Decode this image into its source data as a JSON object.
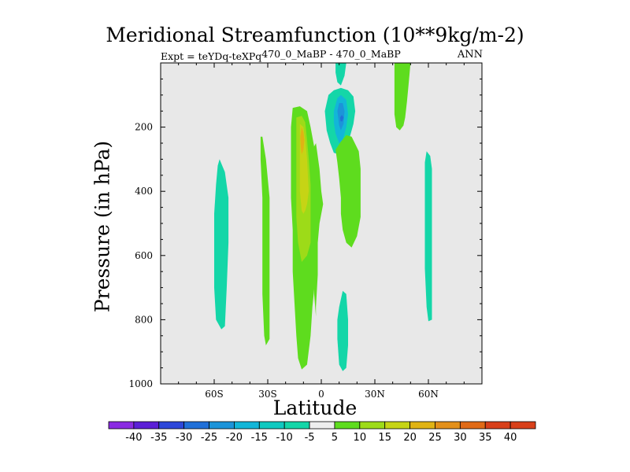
{
  "chart_data": {
    "type": "filled-contour",
    "title": "Meridional Streamfunction (10**9kg/m-2)",
    "subtitle_left_main": "Expt = teYDq-teXPq",
    "subtitle_left_super": "470_0_MaBP - 470_0_MaBP",
    "subtitle_right": "ANN",
    "xlabel": "Latitude",
    "ylabel": "Pressure (in hPa)",
    "xlim": [
      -90,
      90
    ],
    "ylim": [
      1000,
      0
    ],
    "x_ticks": [
      {
        "value": -60,
        "label": "60S"
      },
      {
        "value": -30,
        "label": "30S"
      },
      {
        "value": 0,
        "label": "0"
      },
      {
        "value": 30,
        "label": "30N"
      },
      {
        "value": 60,
        "label": "60N"
      }
    ],
    "y_ticks": [
      {
        "value": 200,
        "label": "200"
      },
      {
        "value": 400,
        "label": "400"
      },
      {
        "value": 600,
        "label": "600"
      },
      {
        "value": 800,
        "label": "800"
      },
      {
        "value": 1000,
        "label": "1000"
      }
    ],
    "colorbar": {
      "labels": [
        "-40",
        "-35",
        "-30",
        "-25",
        "-20",
        "-15",
        "-10",
        "-5",
        "5",
        "10",
        "15",
        "20",
        "25",
        "30",
        "35",
        "40"
      ],
      "colors": [
        "#8a2be2",
        "#5b1fd6",
        "#2d47d9",
        "#2070d8",
        "#1c94d9",
        "#12b6d8",
        "#10c9c0",
        "#14d6a8",
        "#eeeeee",
        "#5edc1e",
        "#9ddb18",
        "#c6d415",
        "#e0b314",
        "#e3901a",
        "#e06a16",
        "#d8401a"
      ]
    },
    "background_color": "#e8e8e8",
    "regions": [
      {
        "color": "#14d6a8",
        "points": [
          [
            -57,
            300
          ],
          [
            -54,
            340
          ],
          [
            -52,
            420
          ],
          [
            -52,
            560
          ],
          [
            -53,
            700
          ],
          [
            -54,
            820
          ],
          [
            -56,
            830
          ],
          [
            -59,
            800
          ],
          [
            -60,
            700
          ],
          [
            -60,
            580
          ],
          [
            -60,
            470
          ],
          [
            -59,
            380
          ],
          [
            -58,
            320
          ]
        ]
      },
      {
        "color": "#5edc1e",
        "points": [
          [
            -33,
            230
          ],
          [
            -31,
            300
          ],
          [
            -29,
            420
          ],
          [
            -29,
            580
          ],
          [
            -29,
            720
          ],
          [
            -29,
            860
          ],
          [
            -31,
            880
          ],
          [
            -32,
            850
          ],
          [
            -33,
            720
          ],
          [
            -33,
            560
          ],
          [
            -33,
            420
          ],
          [
            -34,
            300
          ],
          [
            -34,
            230
          ]
        ]
      },
      {
        "color": "#5edc1e",
        "points": [
          [
            -16,
            140
          ],
          [
            -12,
            135
          ],
          [
            -8,
            150
          ],
          [
            -6,
            200
          ],
          [
            -4,
            260
          ],
          [
            -3,
            350
          ],
          [
            -3,
            420
          ],
          [
            -3,
            540
          ],
          [
            -3,
            650
          ],
          [
            -5,
            760
          ],
          [
            -6,
            850
          ],
          [
            -8,
            940
          ],
          [
            -11,
            955
          ],
          [
            -13,
            920
          ],
          [
            -14,
            850
          ],
          [
            -15,
            750
          ],
          [
            -16,
            650
          ],
          [
            -16,
            520
          ],
          [
            -17,
            420
          ],
          [
            -17,
            300
          ],
          [
            -17,
            200
          ]
        ]
      },
      {
        "color": "#9ddb18",
        "points": [
          [
            -14,
            170
          ],
          [
            -11,
            165
          ],
          [
            -9,
            185
          ],
          [
            -8,
            240
          ],
          [
            -7,
            300
          ],
          [
            -6,
            380
          ],
          [
            -6,
            480
          ],
          [
            -6,
            560
          ],
          [
            -8,
            600
          ],
          [
            -11,
            620
          ],
          [
            -13,
            560
          ],
          [
            -14,
            480
          ],
          [
            -14,
            380
          ],
          [
            -14,
            290
          ],
          [
            -14,
            210
          ]
        ]
      },
      {
        "color": "#c6d415",
        "points": [
          [
            -12,
            190
          ],
          [
            -10,
            200
          ],
          [
            -9,
            240
          ],
          [
            -8,
            300
          ],
          [
            -7,
            400
          ],
          [
            -8,
            440
          ],
          [
            -9,
            460
          ],
          [
            -10,
            470
          ],
          [
            -11,
            460
          ],
          [
            -12,
            400
          ],
          [
            -12,
            300
          ],
          [
            -12,
            240
          ]
        ]
      },
      {
        "color": "#e0b314",
        "points": [
          [
            -11,
            200
          ],
          [
            -10,
            215
          ],
          [
            -9.5,
            240
          ],
          [
            -10,
            270
          ],
          [
            -11,
            285
          ],
          [
            -11.5,
            260
          ],
          [
            -11.8,
            230
          ]
        ]
      },
      {
        "color": "#5edc1e",
        "points": [
          [
            -3,
            250
          ],
          [
            -1,
            330
          ],
          [
            0,
            400
          ],
          [
            1,
            440
          ],
          [
            0,
            470
          ],
          [
            -1,
            500
          ],
          [
            -2,
            560
          ],
          [
            -2,
            660
          ],
          [
            -3,
            760
          ],
          [
            -3,
            790
          ],
          [
            -4,
            720
          ],
          [
            -4,
            600
          ],
          [
            -4,
            480
          ],
          [
            -4,
            400
          ],
          [
            -4,
            330
          ],
          [
            -4,
            260
          ]
        ]
      },
      {
        "color": "#14d6a8",
        "points": [
          [
            2,
            150
          ],
          [
            4,
            100
          ],
          [
            7,
            85
          ],
          [
            11,
            78
          ],
          [
            15,
            85
          ],
          [
            18,
            105
          ],
          [
            19,
            150
          ],
          [
            18,
            190
          ],
          [
            16,
            230
          ],
          [
            13,
            265
          ],
          [
            10,
            285
          ],
          [
            7,
            280
          ],
          [
            5,
            250
          ],
          [
            3,
            210
          ]
        ]
      },
      {
        "color": "#12b6d8",
        "points": [
          [
            7,
            150
          ],
          [
            9,
            110
          ],
          [
            11,
            100
          ],
          [
            14,
            115
          ],
          [
            15,
            160
          ],
          [
            14,
            200
          ],
          [
            12,
            240
          ],
          [
            10,
            250
          ],
          [
            8,
            220
          ],
          [
            7,
            185
          ]
        ]
      },
      {
        "color": "#1c94d9",
        "points": [
          [
            9,
            150
          ],
          [
            10,
            125
          ],
          [
            12,
            125
          ],
          [
            13,
            150
          ],
          [
            12.5,
            190
          ],
          [
            11,
            210
          ],
          [
            10,
            195
          ],
          [
            9.5,
            170
          ]
        ]
      },
      {
        "color": "#2070d8",
        "points": [
          [
            10.5,
            170
          ],
          [
            11.5,
            162
          ],
          [
            12.5,
            170
          ],
          [
            11.8,
            182
          ],
          [
            10.8,
            182
          ]
        ]
      },
      {
        "color": "#14d6a8",
        "points": [
          [
            8,
            0
          ],
          [
            14,
            0
          ],
          [
            13,
            40
          ],
          [
            11,
            70
          ],
          [
            9,
            60
          ],
          [
            8,
            30
          ]
        ]
      },
      {
        "color": "#5edc1e",
        "points": [
          [
            8,
            270
          ],
          [
            11,
            245
          ],
          [
            14,
            225
          ],
          [
            17,
            230
          ],
          [
            21,
            275
          ],
          [
            22,
            330
          ],
          [
            22,
            400
          ],
          [
            22,
            480
          ],
          [
            20,
            540
          ],
          [
            17,
            575
          ],
          [
            14,
            560
          ],
          [
            12,
            520
          ],
          [
            11,
            470
          ],
          [
            11,
            420
          ],
          [
            10,
            360
          ],
          [
            9,
            310
          ]
        ]
      },
      {
        "color": "#14d6a8",
        "points": [
          [
            10,
            760
          ],
          [
            12,
            710
          ],
          [
            14,
            720
          ],
          [
            15,
            800
          ],
          [
            15,
            880
          ],
          [
            14,
            950
          ],
          [
            12,
            960
          ],
          [
            10,
            940
          ],
          [
            9,
            860
          ],
          [
            9,
            800
          ]
        ]
      },
      {
        "color": "#5edc1e",
        "points": [
          [
            41,
            0
          ],
          [
            50,
            0
          ],
          [
            49,
            60
          ],
          [
            48,
            120
          ],
          [
            47,
            170
          ],
          [
            46,
            195
          ],
          [
            44,
            210
          ],
          [
            42,
            200
          ],
          [
            41,
            160
          ],
          [
            41,
            100
          ]
        ]
      },
      {
        "color": "#14d6a8",
        "points": [
          [
            59,
            275
          ],
          [
            61,
            290
          ],
          [
            62,
            330
          ],
          [
            62,
            420
          ],
          [
            62,
            560
          ],
          [
            62,
            680
          ],
          [
            62,
            800
          ],
          [
            60,
            805
          ],
          [
            59,
            760
          ],
          [
            58,
            640
          ],
          [
            58,
            500
          ],
          [
            58,
            380
          ],
          [
            58,
            310
          ]
        ]
      }
    ]
  }
}
